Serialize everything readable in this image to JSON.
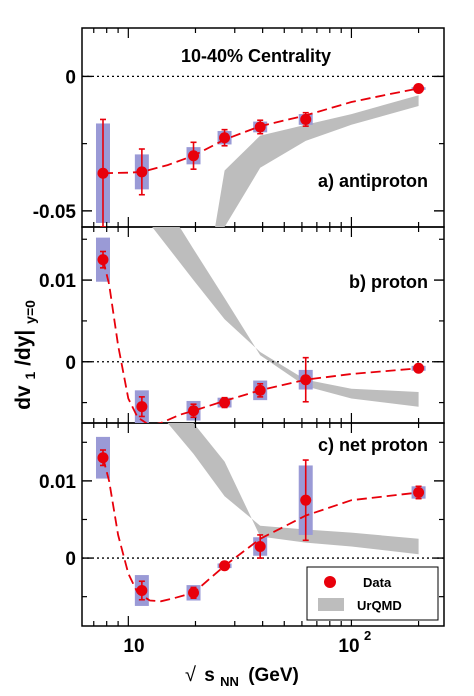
{
  "chart_data": {
    "type": "scatter",
    "title": "10-40% Centrality",
    "xlabel": "√ s_NN (GeV)",
    "xlabel_parts": {
      "root": "√",
      "s": "s",
      "sub": "NN",
      "unit": "(GeV)"
    },
    "ylabel_parts": {
      "main": "dv",
      "sub1": "1",
      "mid": "/dy|",
      "sub2": "y=0"
    },
    "x_scale": "log",
    "xlim": [
      6.2,
      260
    ],
    "x_tick_labels": [
      "10",
      "10",
      "2"
    ],
    "legend": {
      "position": "bottom-right",
      "data": "Data",
      "model": "UrQMD"
    },
    "colors": {
      "data": "#e8000b",
      "fit": "#e8000b",
      "box": "#9a9ad6",
      "model": "#bdbdbd"
    },
    "panels": [
      {
        "label": "a) antiproton",
        "ylim": [
          -0.056,
          0.018
        ],
        "y_ticks": [
          0,
          -0.05
        ],
        "y_tick_labels": [
          "0",
          "-0.05"
        ],
        "points": [
          {
            "x": 7.7,
            "y": -0.036,
            "stat": 0.02,
            "sys": 0.0185
          },
          {
            "x": 11.5,
            "y": -0.0355,
            "stat": 0.0085,
            "sys": 0.0065
          },
          {
            "x": 19.6,
            "y": -0.0295,
            "stat": 0.005,
            "sys": 0.0032
          },
          {
            "x": 27,
            "y": -0.0228,
            "stat": 0.003,
            "sys": 0.0025
          },
          {
            "x": 39,
            "y": -0.0188,
            "stat": 0.0025,
            "sys": 0.002
          },
          {
            "x": 62.4,
            "y": -0.016,
            "stat": 0.0025,
            "sys": 0.002
          },
          {
            "x": 200,
            "y": -0.0045,
            "stat": 0.0007,
            "sys": 0.0005
          }
        ],
        "fit": [
          [
            7.7,
            -0.036
          ],
          [
            10,
            -0.0358
          ],
          [
            11.5,
            -0.0355
          ],
          [
            15,
            -0.033
          ],
          [
            19.6,
            -0.0295
          ],
          [
            27,
            -0.0235
          ],
          [
            39,
            -0.0185
          ],
          [
            62.4,
            -0.0145
          ],
          [
            100,
            -0.0095
          ],
          [
            150,
            -0.0065
          ],
          [
            200,
            -0.0045
          ]
        ],
        "model": {
          "upper": [
            [
              24.5,
              -0.056
            ],
            [
              27,
              -0.035
            ],
            [
              39,
              -0.022
            ],
            [
              62.4,
              -0.018
            ],
            [
              100,
              -0.014
            ],
            [
              200,
              -0.007
            ]
          ],
          "lower": [
            [
              24.5,
              -0.056
            ],
            [
              27,
              -0.056
            ],
            [
              39,
              -0.034
            ],
            [
              62.4,
              -0.024
            ],
            [
              100,
              -0.018
            ],
            [
              200,
              -0.011
            ]
          ]
        }
      },
      {
        "label": "b) proton",
        "ylim": [
          -0.0075,
          0.0165
        ],
        "y_ticks": [
          0,
          0.01
        ],
        "y_tick_labels": [
          "0",
          "0.01"
        ],
        "points": [
          {
            "x": 7.7,
            "y": 0.0125,
            "stat": 0.001,
            "sys": 0.0027
          },
          {
            "x": 11.5,
            "y": -0.0055,
            "stat": 0.0012,
            "sys": 0.002
          },
          {
            "x": 19.6,
            "y": -0.006,
            "stat": 0.0008,
            "sys": 0.0012
          },
          {
            "x": 27,
            "y": -0.005,
            "stat": 0.0006,
            "sys": 0.0006
          },
          {
            "x": 39,
            "y": -0.0035,
            "stat": 0.0008,
            "sys": 0.0012
          },
          {
            "x": 62.4,
            "y": -0.0022,
            "stat": 0.0027,
            "sys": 0.0012
          },
          {
            "x": 200,
            "y": -0.0008,
            "stat": 0.0003,
            "sys": 0.0003
          }
        ],
        "fit": [
          [
            7.7,
            0.0125
          ],
          [
            8.2,
            0.0095
          ],
          [
            9,
            0.002
          ],
          [
            10,
            -0.0045
          ],
          [
            11,
            -0.0068
          ],
          [
            12.5,
            -0.0078
          ],
          [
            14,
            -0.0075
          ],
          [
            17,
            -0.0065
          ],
          [
            19.6,
            -0.006
          ],
          [
            27,
            -0.0048
          ],
          [
            39,
            -0.0035
          ],
          [
            62.4,
            -0.0022
          ],
          [
            100,
            -0.0015
          ],
          [
            200,
            -0.0008
          ]
        ],
        "model": {
          "upper": [
            [
              12.8,
              0.0165
            ],
            [
              19.6,
              0.01
            ],
            [
              27,
              0.0052
            ],
            [
              39,
              0.0012
            ],
            [
              62.4,
              -0.0022
            ],
            [
              100,
              -0.0033
            ],
            [
              200,
              -0.0037
            ]
          ],
          "lower": [
            [
              17,
              0.0165
            ],
            [
              19.6,
              0.0138
            ],
            [
              27,
              0.0078
            ],
            [
              39,
              0.0008
            ],
            [
              62.4,
              -0.003
            ],
            [
              100,
              -0.0045
            ],
            [
              200,
              -0.0055
            ]
          ]
        }
      },
      {
        "label": "c) net proton",
        "ylim": [
          -0.0088,
          0.0175
        ],
        "y_ticks": [
          0,
          0.01
        ],
        "y_tick_labels": [
          "0",
          "0.01"
        ],
        "points": [
          {
            "x": 7.7,
            "y": 0.013,
            "stat": 0.001,
            "sys": 0.0027
          },
          {
            "x": 11.5,
            "y": -0.0042,
            "stat": 0.0012,
            "sys": 0.002
          },
          {
            "x": 19.6,
            "y": -0.0045,
            "stat": 0.0007,
            "sys": 0.001
          },
          {
            "x": 27,
            "y": -0.001,
            "stat": 0.0005,
            "sys": 0.0003
          },
          {
            "x": 39,
            "y": 0.0015,
            "stat": 0.0015,
            "sys": 0.0012
          },
          {
            "x": 62.4,
            "y": 0.0075,
            "stat": 0.0052,
            "sys": 0.0045
          },
          {
            "x": 200,
            "y": 0.0085,
            "stat": 0.0008,
            "sys": 0.0008
          }
        ],
        "fit": [
          [
            7.7,
            0.013
          ],
          [
            8.2,
            0.01
          ],
          [
            9,
            0.003
          ],
          [
            10,
            -0.002
          ],
          [
            11,
            -0.0045
          ],
          [
            12.5,
            -0.0055
          ],
          [
            14,
            -0.0056
          ],
          [
            16,
            -0.0052
          ],
          [
            19.6,
            -0.0045
          ],
          [
            27,
            -0.001
          ],
          [
            39,
            0.0025
          ],
          [
            62.4,
            0.0055
          ],
          [
            100,
            0.0075
          ],
          [
            200,
            0.0085
          ]
        ],
        "model": {
          "upper": [
            [
              15,
              0.0175
            ],
            [
              19.6,
              0.0135
            ],
            [
              27,
              0.008
            ],
            [
              39,
              0.0042
            ],
            [
              62.4,
              0.0037
            ],
            [
              100,
              0.0033
            ],
            [
              200,
              0.0025
            ]
          ],
          "lower": [
            [
              19.6,
              0.0175
            ],
            [
              27,
              0.0125
            ],
            [
              39,
              0.0028
            ],
            [
              62.4,
              0.002
            ],
            [
              100,
              0.0015
            ],
            [
              200,
              0.0005
            ]
          ]
        }
      }
    ]
  }
}
